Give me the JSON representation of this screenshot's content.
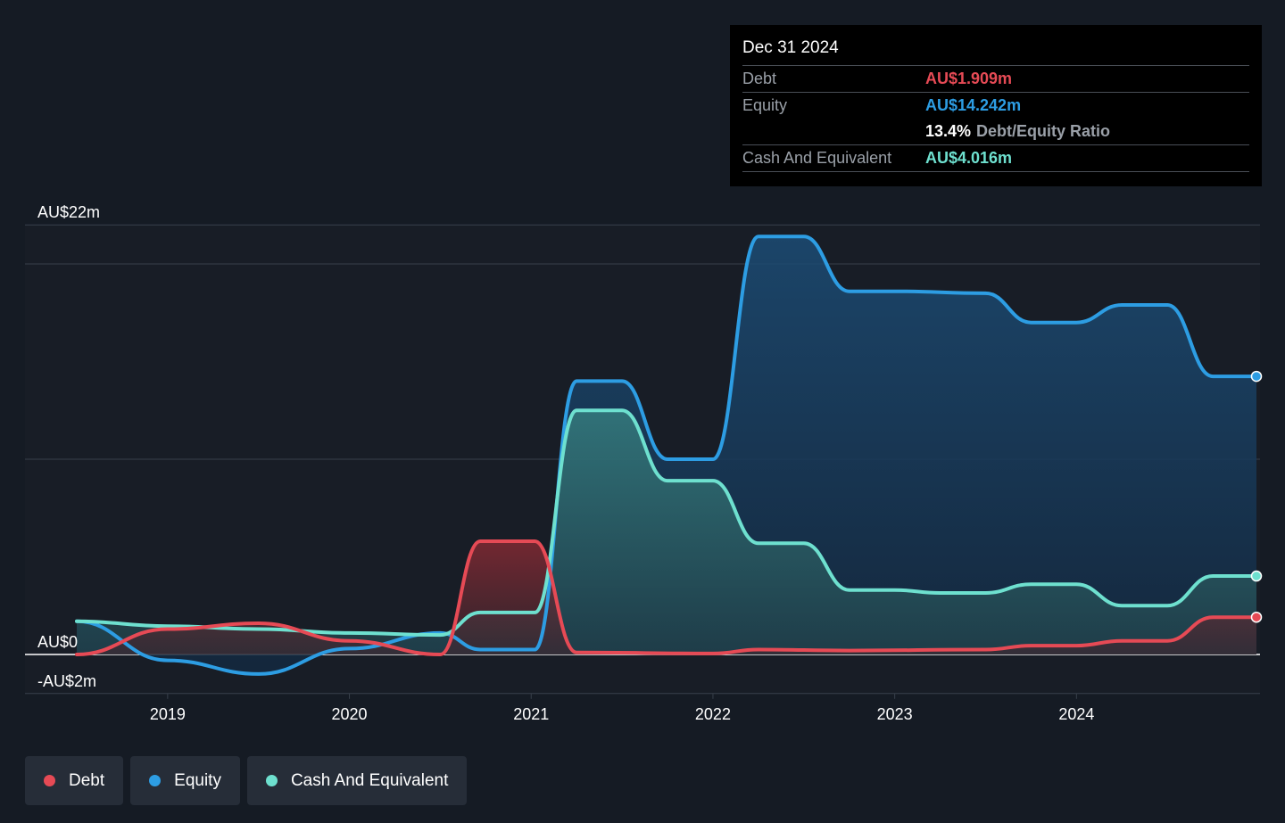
{
  "tooltip": {
    "date": "Dec 31 2024",
    "debt_label": "Debt",
    "debt_value": "AU$1.909m",
    "equity_label": "Equity",
    "equity_value": "AU$14.242m",
    "ratio_value": "13.4%",
    "ratio_label": "Debt/Equity Ratio",
    "cash_label": "Cash And Equivalent",
    "cash_value": "AU$4.016m"
  },
  "legend": {
    "debt": "Debt",
    "equity": "Equity",
    "cash": "Cash And Equivalent"
  },
  "colors": {
    "debt": "#e64a55",
    "equity": "#2d9de3",
    "cash": "#6ee0cf",
    "background": "#151b24",
    "plot_background": "#181d26"
  },
  "chart_data": {
    "type": "area",
    "y_unit": "AU$m",
    "ylim": [
      -4,
      22
    ],
    "xlim": [
      2018.5,
      2024.99
    ],
    "y_tick_labels": [
      {
        "value": 22,
        "label": "AU$22m"
      },
      {
        "value": 0,
        "label": "AU$0"
      },
      {
        "value": -2,
        "label": "-AU$2m"
      }
    ],
    "gridlines": [
      22,
      20,
      10,
      0,
      -2
    ],
    "x_ticks": [
      {
        "value": 2019,
        "label": "2019"
      },
      {
        "value": 2020,
        "label": "2020"
      },
      {
        "value": 2021,
        "label": "2021"
      },
      {
        "value": 2022,
        "label": "2022"
      },
      {
        "value": 2023,
        "label": "2023"
      },
      {
        "value": 2024,
        "label": "2024"
      }
    ],
    "series": [
      {
        "name": "Debt",
        "key": "debt",
        "points": [
          [
            2018.5,
            0
          ],
          [
            2019,
            1.3
          ],
          [
            2019.5,
            1.6
          ],
          [
            2020,
            0.7
          ],
          [
            2020.5,
            0
          ],
          [
            2020.72,
            5.8
          ],
          [
            2021.02,
            5.8
          ],
          [
            2021.25,
            0.1
          ],
          [
            2022.0,
            0.05
          ],
          [
            2022.25,
            0.25
          ],
          [
            2022.75,
            0.2
          ],
          [
            2023.5,
            0.25
          ],
          [
            2023.75,
            0.45
          ],
          [
            2024.0,
            0.45
          ],
          [
            2024.25,
            0.7
          ],
          [
            2024.5,
            0.7
          ],
          [
            2024.75,
            1.909
          ],
          [
            2024.99,
            1.909
          ]
        ]
      },
      {
        "name": "Equity",
        "key": "equity",
        "points": [
          [
            2018.5,
            1.7
          ],
          [
            2019,
            -0.3
          ],
          [
            2019.5,
            -1.0
          ],
          [
            2020,
            0.3
          ],
          [
            2020.5,
            1.1
          ],
          [
            2020.72,
            0.25
          ],
          [
            2021.02,
            0.25
          ],
          [
            2021.25,
            14.0
          ],
          [
            2021.5,
            14.0
          ],
          [
            2021.75,
            10.0
          ],
          [
            2022.0,
            10.0
          ],
          [
            2022.25,
            21.4
          ],
          [
            2022.5,
            21.4
          ],
          [
            2022.75,
            18.6
          ],
          [
            2023.0,
            18.6
          ],
          [
            2023.5,
            18.5
          ],
          [
            2023.75,
            17.0
          ],
          [
            2024.0,
            17.0
          ],
          [
            2024.25,
            17.9
          ],
          [
            2024.5,
            17.9
          ],
          [
            2024.75,
            14.242
          ],
          [
            2024.99,
            14.242
          ]
        ]
      },
      {
        "name": "Cash And Equivalent",
        "key": "cash",
        "points": [
          [
            2018.5,
            1.7
          ],
          [
            2019,
            1.45
          ],
          [
            2019.5,
            1.3
          ],
          [
            2020,
            1.1
          ],
          [
            2020.5,
            1.0
          ],
          [
            2020.72,
            2.15
          ],
          [
            2021.02,
            2.15
          ],
          [
            2021.25,
            12.5
          ],
          [
            2021.5,
            12.5
          ],
          [
            2021.75,
            8.9
          ],
          [
            2022.0,
            8.9
          ],
          [
            2022.25,
            5.7
          ],
          [
            2022.5,
            5.7
          ],
          [
            2022.75,
            3.3
          ],
          [
            2023.0,
            3.3
          ],
          [
            2023.25,
            3.15
          ],
          [
            2023.5,
            3.15
          ],
          [
            2023.75,
            3.6
          ],
          [
            2024.0,
            3.6
          ],
          [
            2024.25,
            2.5
          ],
          [
            2024.5,
            2.5
          ],
          [
            2024.75,
            4.016
          ],
          [
            2024.99,
            4.016
          ]
        ]
      }
    ]
  }
}
